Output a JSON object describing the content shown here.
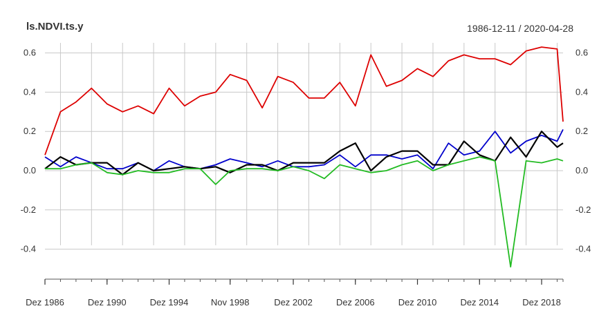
{
  "header": {
    "title": "ls.NDVI.ts.y",
    "date_range": "1986-12-11 / 2020-04-28"
  },
  "chart_data": {
    "type": "line",
    "title": "ls.NDVI.ts.y",
    "subtitle": "1986-12-11 / 2020-04-28",
    "xlabel": "",
    "ylabel": "",
    "xlim": [
      1986.95,
      2020.33
    ],
    "ylim": [
      -0.55,
      0.65
    ],
    "grid": true,
    "legend": "none",
    "x_tick_labels": [
      "Dez 1986",
      "Dez 1990",
      "Dez 1994",
      "Nov 1998",
      "Dez 2002",
      "Dez 2006",
      "Dez 2010",
      "Dez 2014",
      "Dez 2018"
    ],
    "x_tick_positions": [
      1986.95,
      1990.95,
      1994.95,
      1998.88,
      2002.95,
      2006.95,
      2010.95,
      2014.95,
      2018.95
    ],
    "y_ticks": [
      -0.4,
      -0.2,
      0.0,
      0.2,
      0.4,
      0.6
    ],
    "y_tick_labels": [
      "-0.4",
      "-0.2",
      "0.0",
      "0.2",
      "0.4",
      "0.6"
    ],
    "x": [
      1986.95,
      1987.95,
      1988.95,
      1989.95,
      1990.95,
      1991.95,
      1992.95,
      1993.95,
      1994.95,
      1995.95,
      1996.95,
      1997.95,
      1998.88,
      1999.95,
      2000.95,
      2001.95,
      2002.95,
      2003.95,
      2004.95,
      2005.95,
      2006.95,
      2007.95,
      2008.95,
      2009.95,
      2010.95,
      2011.95,
      2012.95,
      2013.95,
      2014.95,
      2015.95,
      2016.95,
      2017.95,
      2018.95,
      2019.95,
      2020.33
    ],
    "series": [
      {
        "color": "#dd0000",
        "values": [
          0.08,
          0.3,
          0.35,
          0.42,
          0.34,
          0.3,
          0.33,
          0.29,
          0.42,
          0.33,
          0.38,
          0.4,
          0.49,
          0.46,
          0.32,
          0.48,
          0.45,
          0.37,
          0.37,
          0.45,
          0.33,
          0.59,
          0.43,
          0.46,
          0.52,
          0.48,
          0.56,
          0.59,
          0.57,
          0.57,
          0.54,
          0.61,
          0.63,
          0.62,
          0.25
        ]
      },
      {
        "color": "#0000cc",
        "values": [
          0.07,
          0.02,
          0.07,
          0.04,
          0.01,
          0.01,
          0.04,
          0.0,
          0.05,
          0.02,
          0.01,
          0.03,
          0.06,
          0.04,
          0.02,
          0.05,
          0.02,
          0.02,
          0.03,
          0.08,
          0.02,
          0.08,
          0.08,
          0.06,
          0.08,
          0.01,
          0.14,
          0.08,
          0.1,
          0.2,
          0.09,
          0.15,
          0.18,
          0.15,
          0.21
        ]
      },
      {
        "color": "#000000",
        "values": [
          0.01,
          0.07,
          0.03,
          0.04,
          0.04,
          -0.02,
          0.04,
          0.0,
          0.01,
          0.02,
          0.01,
          0.02,
          -0.01,
          0.03,
          0.03,
          0.0,
          0.04,
          0.04,
          0.04,
          0.1,
          0.14,
          0.0,
          0.07,
          0.1,
          0.1,
          0.03,
          0.03,
          0.15,
          0.08,
          0.05,
          0.17,
          0.07,
          0.2,
          0.12,
          0.14
        ]
      },
      {
        "color": "#22bb22",
        "values": [
          0.01,
          0.01,
          0.03,
          0.04,
          -0.01,
          -0.02,
          0.0,
          -0.01,
          -0.01,
          0.01,
          0.01,
          -0.07,
          0.0,
          0.01,
          0.01,
          0.0,
          0.02,
          0.0,
          -0.04,
          0.03,
          0.01,
          -0.01,
          0.0,
          0.03,
          0.05,
          0.0,
          0.03,
          0.05,
          0.07,
          0.05,
          -0.49,
          0.05,
          0.04,
          0.06,
          0.05
        ]
      }
    ]
  }
}
